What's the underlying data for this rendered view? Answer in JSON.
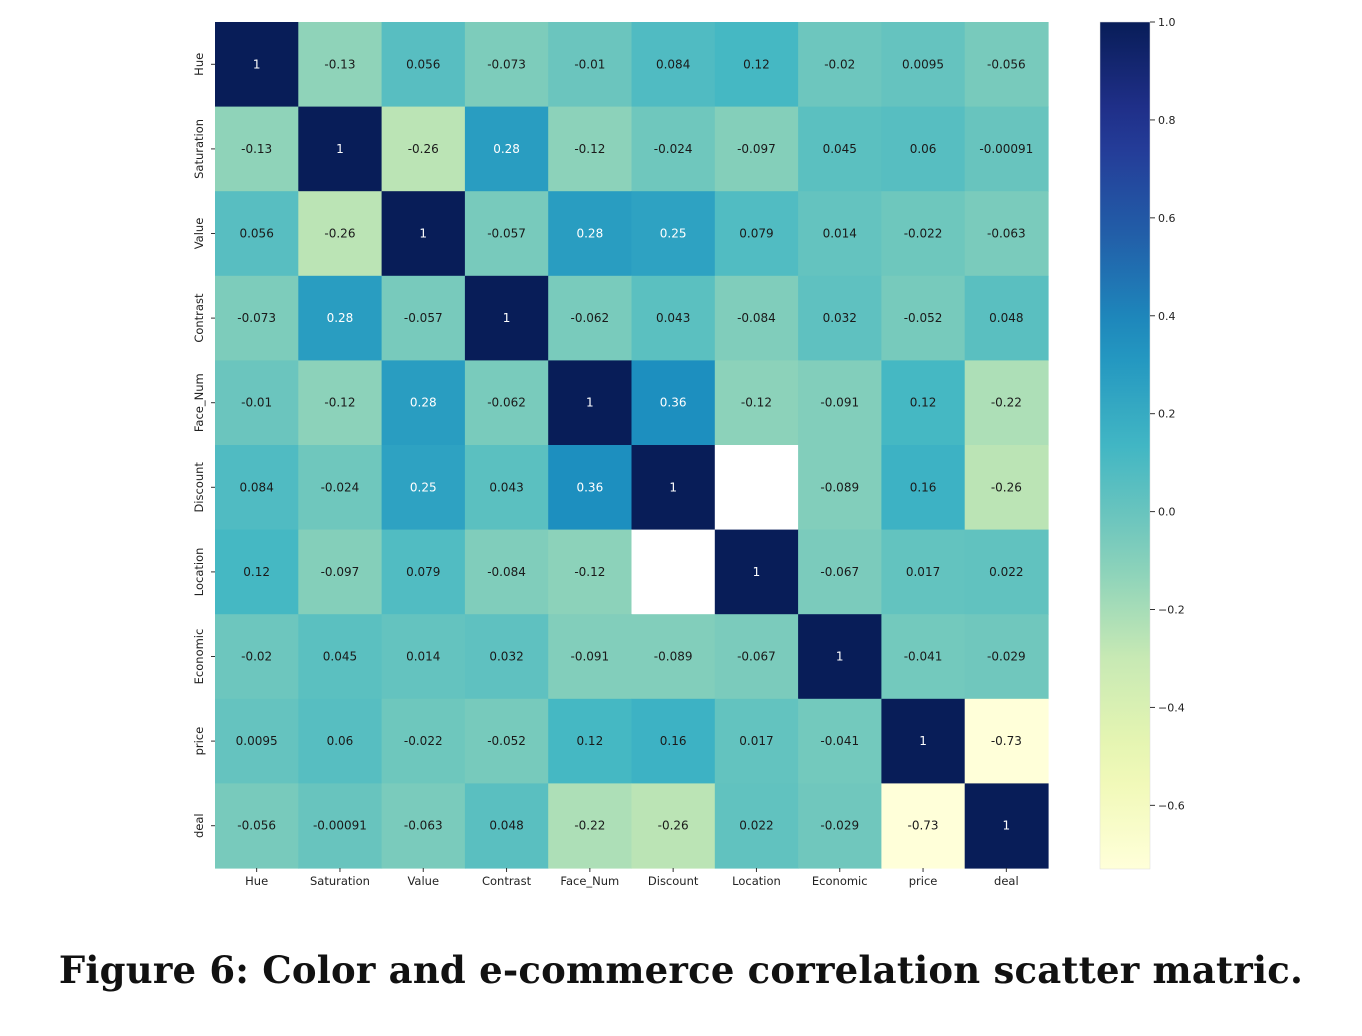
{
  "caption": "Figure 6: Color and e-commerce correlation scatter matric.",
  "chart_data": {
    "type": "heatmap",
    "x_labels": [
      "Hue",
      "Saturation",
      "Value",
      "Contrast",
      "Face_Num",
      "Discount",
      "Location",
      "Economic",
      "price",
      "deal"
    ],
    "y_labels": [
      "Hue",
      "Saturation",
      "Value",
      "Contrast",
      "Face_Num",
      "Discount",
      "Location",
      "Economic",
      "price",
      "deal"
    ],
    "values": [
      [
        "1",
        "-0.13",
        "0.056",
        "-0.073",
        "-0.01",
        "0.084",
        "0.12",
        "-0.02",
        "0.0095",
        "-0.056"
      ],
      [
        "-0.13",
        "1",
        "-0.26",
        "0.28",
        "-0.12",
        "-0.024",
        "-0.097",
        "0.045",
        "0.06",
        "-0.00091"
      ],
      [
        "0.056",
        "-0.26",
        "1",
        "-0.057",
        "0.28",
        "0.25",
        "0.079",
        "0.014",
        "-0.022",
        "-0.063"
      ],
      [
        "-0.073",
        "0.28",
        "-0.057",
        "1",
        "-0.062",
        "0.043",
        "-0.084",
        "0.032",
        "-0.052",
        "0.048"
      ],
      [
        "-0.01",
        "-0.12",
        "0.28",
        "-0.062",
        "1",
        "0.36",
        "-0.12",
        "-0.091",
        "0.12",
        "-0.22"
      ],
      [
        "0.084",
        "-0.024",
        "0.25",
        "0.043",
        "0.36",
        "1",
        null,
        "-0.089",
        "0.16",
        "-0.26"
      ],
      [
        "0.12",
        "-0.097",
        "0.079",
        "-0.084",
        "-0.12",
        null,
        "1",
        "-0.067",
        "0.017",
        "0.022"
      ],
      [
        "-0.02",
        "0.045",
        "0.014",
        "0.032",
        "-0.091",
        "-0.089",
        "-0.067",
        "1",
        "-0.041",
        "-0.029"
      ],
      [
        "0.0095",
        "0.06",
        "-0.022",
        "-0.052",
        "0.12",
        "0.16",
        "0.017",
        "-0.041",
        "1",
        "-0.73"
      ],
      [
        "-0.056",
        "-0.00091",
        "-0.063",
        "0.048",
        "-0.22",
        "-0.26",
        "0.022",
        "-0.029",
        "-0.73",
        "1"
      ]
    ],
    "colorscale": "YlGnBu",
    "vmin": -0.73,
    "vmax": 1.0,
    "colorbar_ticks": [
      "1.0",
      "0.8",
      "0.6",
      "0.4",
      "0.2",
      "0.0",
      "−0.2",
      "−0.4",
      "−0.6"
    ],
    "colorbar_tick_values": [
      1.0,
      0.8,
      0.6,
      0.4,
      0.2,
      0.0,
      -0.2,
      -0.4,
      -0.6
    ],
    "colorbar_placement": "right"
  }
}
